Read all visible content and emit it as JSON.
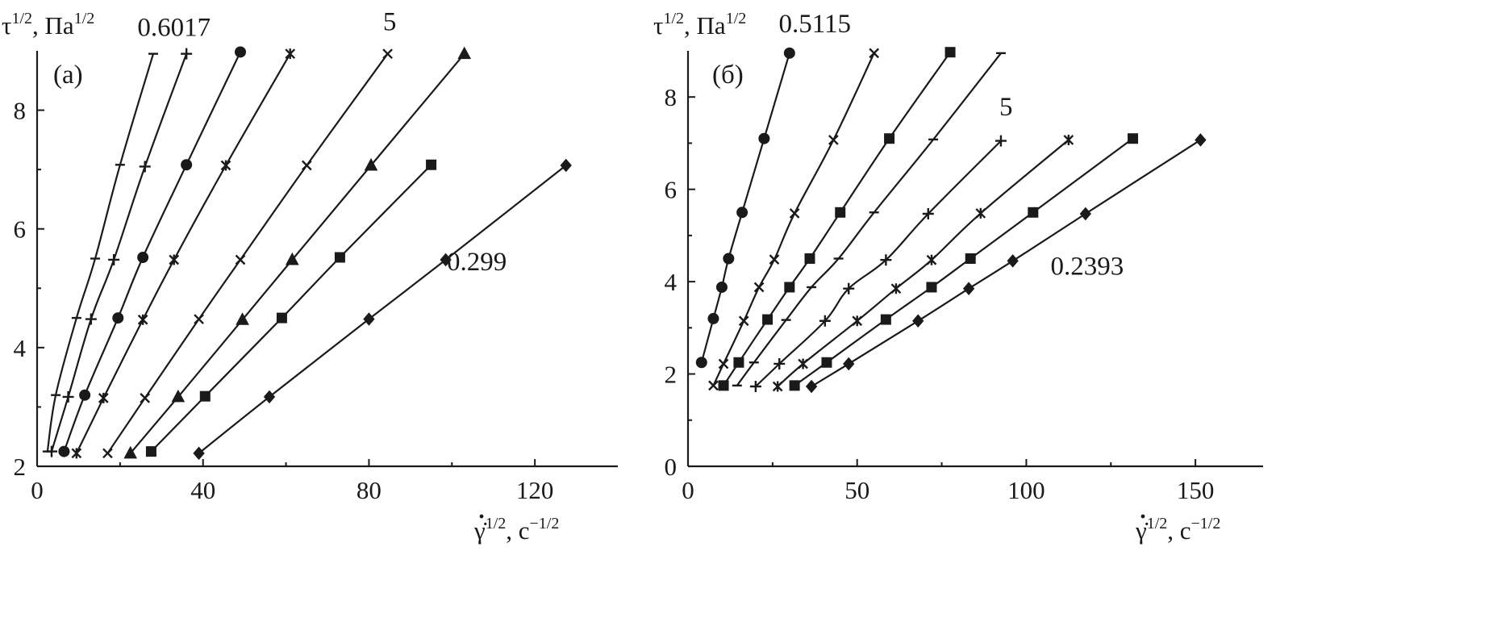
{
  "chart_data": [
    {
      "type": "line",
      "panel_label": "(a)",
      "ylabel": {
        "base": "τ",
        "exp": "1/2",
        "sep": ", Па",
        "unit_exp": "1/2"
      },
      "xlabel": {
        "base": "γ̇",
        "exp": "1/2",
        "sep": ", с",
        "unit_exp": "−1/2"
      },
      "xlim": [
        0,
        140
      ],
      "ylim": [
        2,
        9
      ],
      "xticks": [
        "0",
        "40",
        "80",
        "120"
      ],
      "xtick_values": [
        0,
        40,
        80,
        120
      ],
      "yticks": [
        "2",
        "4",
        "6",
        "8"
      ],
      "ytick_values": [
        2,
        4,
        6,
        8
      ],
      "annotations": [
        {
          "text": "0.6017",
          "x": 33,
          "y": 9.25
        },
        {
          "text": "5",
          "x": 85,
          "y": 9.35
        },
        {
          "text": "0.299",
          "x": 106,
          "y": 5.3
        }
      ],
      "series": [
        {
          "marker": "dash",
          "x": [
            2.5,
            4.5,
            9.5,
            14,
            20,
            28
          ],
          "y": [
            2.25,
            3.2,
            4.5,
            5.5,
            7.08,
            8.95
          ]
        },
        {
          "marker": "plus",
          "x": [
            3.5,
            7.5,
            13,
            18.5,
            26,
            36
          ],
          "y": [
            2.25,
            3.17,
            4.48,
            5.48,
            7.05,
            8.95
          ]
        },
        {
          "marker": "circle",
          "x": [
            6.5,
            11.5,
            19.5,
            25.5,
            36,
            49
          ],
          "y": [
            2.25,
            3.2,
            4.5,
            5.52,
            7.08,
            8.98
          ]
        },
        {
          "marker": "asterisk",
          "x": [
            9.5,
            16,
            25.5,
            33,
            45.5,
            61
          ],
          "y": [
            2.22,
            3.15,
            4.47,
            5.48,
            7.07,
            8.95
          ]
        },
        {
          "marker": "x",
          "x": [
            17,
            26,
            39,
            49,
            65,
            84.5
          ],
          "y": [
            2.22,
            3.15,
            4.48,
            5.48,
            7.07,
            8.95
          ]
        },
        {
          "marker": "triangle",
          "x": [
            22.5,
            34,
            49.5,
            61.5,
            80.5,
            103
          ],
          "y": [
            2.22,
            3.17,
            4.47,
            5.48,
            7.07,
            8.95
          ]
        },
        {
          "marker": "square",
          "x": [
            27.5,
            40.5,
            59,
            73,
            95
          ],
          "y": [
            2.25,
            3.18,
            4.5,
            5.52,
            7.08
          ]
        },
        {
          "marker": "diamond",
          "x": [
            39,
            56,
            80,
            98.5,
            127.5
          ],
          "y": [
            2.22,
            3.17,
            4.48,
            5.48,
            7.07
          ]
        }
      ]
    },
    {
      "type": "line",
      "panel_label": "(б)",
      "ylabel": {
        "base": "τ",
        "exp": "1/2",
        "sep": ", Па",
        "unit_exp": "1/2"
      },
      "xlabel": {
        "base": "γ̇",
        "exp": "1/2",
        "sep": ", с",
        "unit_exp": "−1/2"
      },
      "xlim": [
        0,
        170
      ],
      "ylim": [
        0,
        9
      ],
      "xticks": [
        "0",
        "50",
        "100",
        "150"
      ],
      "xtick_values": [
        0,
        50,
        100,
        150
      ],
      "yticks": [
        "0",
        "2",
        "4",
        "6",
        "8"
      ],
      "ytick_values": [
        0,
        2,
        4,
        6,
        8
      ],
      "annotations": [
        {
          "text": "0.5115",
          "x": 37.5,
          "y": 9.4
        },
        {
          "text": "5",
          "x": 94,
          "y": 7.6
        },
        {
          "text": "0.2393",
          "x": 118,
          "y": 4.15
        }
      ],
      "series": [
        {
          "marker": "circle",
          "x": [
            4,
            7.5,
            10,
            12,
            16,
            22.5,
            30
          ],
          "y": [
            2.25,
            3.2,
            3.88,
            4.5,
            5.5,
            7.1,
            8.95
          ]
        },
        {
          "marker": "x",
          "x": [
            7.5,
            10.5,
            16.5,
            21,
            25.5,
            31.5,
            43,
            55
          ],
          "y": [
            1.75,
            2.22,
            3.15,
            3.88,
            4.48,
            5.48,
            7.07,
            8.95
          ]
        },
        {
          "marker": "square",
          "x": [
            10.5,
            15,
            23.5,
            30,
            36,
            45,
            59.5,
            77.5
          ],
          "y": [
            1.75,
            2.25,
            3.18,
            3.88,
            4.5,
            5.5,
            7.1,
            8.97
          ]
        },
        {
          "marker": "dash",
          "x": [
            14.5,
            19.5,
            29,
            36.5,
            44.5,
            55,
            72.5,
            92.5
          ],
          "y": [
            1.75,
            2.25,
            3.17,
            3.88,
            4.5,
            5.5,
            7.08,
            8.95
          ]
        },
        {
          "marker": "plus",
          "x": [
            20,
            27,
            40.5,
            47.5,
            58.5,
            71,
            92.5
          ],
          "y": [
            1.73,
            2.22,
            3.15,
            3.85,
            4.47,
            5.47,
            7.05
          ]
        },
        {
          "marker": "asterisk",
          "x": [
            26.5,
            34,
            50,
            61.5,
            72,
            86.5,
            112.5
          ],
          "y": [
            1.73,
            2.22,
            3.15,
            3.85,
            4.47,
            5.48,
            7.07
          ]
        },
        {
          "marker": "square",
          "x": [
            31.5,
            41,
            58.5,
            72,
            83.5,
            102,
            131.5
          ],
          "y": [
            1.75,
            2.25,
            3.18,
            3.88,
            4.5,
            5.5,
            7.1
          ]
        },
        {
          "marker": "diamond",
          "x": [
            36.5,
            47.5,
            68,
            83,
            96,
            117.5,
            151.5
          ],
          "y": [
            1.73,
            2.22,
            3.15,
            3.85,
            4.45,
            5.47,
            7.07
          ]
        }
      ]
    }
  ]
}
